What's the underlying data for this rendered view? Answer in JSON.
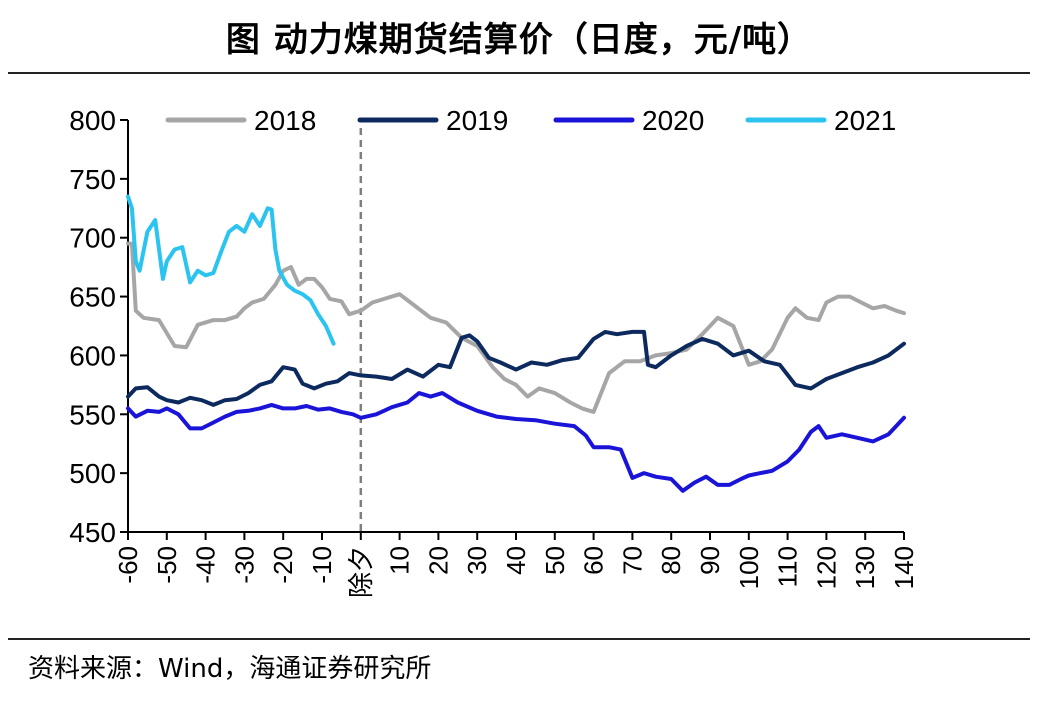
{
  "title": "图  动力煤期货结算价（日度，元/吨）",
  "source": "资料来源：Wind，海通证券研究所",
  "chart_data": {
    "type": "line",
    "title": "图  动力煤期货结算价（日度，元/吨）",
    "xlabel": "",
    "ylabel": "",
    "xlim": [
      -60,
      140
    ],
    "ylim": [
      450,
      800
    ],
    "yticks": [
      450,
      500,
      550,
      600,
      650,
      700,
      750,
      800
    ],
    "xticks": [
      -60,
      -50,
      -40,
      -30,
      -20,
      -10,
      0,
      10,
      20,
      30,
      40,
      50,
      60,
      70,
      80,
      90,
      100,
      110,
      120,
      130,
      140
    ],
    "xtick_labels": [
      "-60",
      "-50",
      "-40",
      "-30",
      "-20",
      "-10",
      "除夕",
      "10",
      "20",
      "30",
      "40",
      "50",
      "60",
      "70",
      "80",
      "90",
      "100",
      "110",
      "120",
      "130",
      "140"
    ],
    "reference_line": {
      "x": 0,
      "style": "dashed",
      "label": "除夕"
    },
    "grid": false,
    "legend_position": "top",
    "series": [
      {
        "name": "2018",
        "color": "#a6a6a6",
        "x": [
          -60,
          -59,
          -58,
          -56,
          -52,
          -48,
          -45,
          -42,
          -38,
          -35,
          -32,
          -30,
          -28,
          -25,
          -22,
          -20,
          -18,
          -16,
          -14,
          -12,
          -10,
          -8,
          -5,
          -3,
          0,
          3,
          6,
          10,
          14,
          18,
          22,
          26,
          30,
          34,
          37,
          40,
          43,
          46,
          50,
          54,
          57,
          60,
          64,
          68,
          72,
          76,
          80,
          84,
          88,
          92,
          96,
          100,
          103,
          106,
          110,
          112,
          115,
          118,
          120,
          123,
          126,
          129,
          132,
          135,
          138,
          140
        ],
        "values": [
          695,
          695,
          638,
          632,
          630,
          608,
          607,
          626,
          630,
          630,
          633,
          640,
          645,
          648,
          660,
          672,
          675,
          660,
          665,
          665,
          658,
          648,
          646,
          635,
          638,
          645,
          648,
          652,
          642,
          632,
          628,
          615,
          608,
          590,
          580,
          575,
          565,
          572,
          568,
          560,
          555,
          552,
          585,
          595,
          595,
          600,
          602,
          605,
          618,
          632,
          625,
          592,
          595,
          605,
          632,
          640,
          632,
          630,
          645,
          650,
          650,
          645,
          640,
          642,
          638,
          636
        ]
      },
      {
        "name": "2019",
        "color": "#0d2a5e",
        "x": [
          -60,
          -58,
          -55,
          -52,
          -50,
          -47,
          -44,
          -41,
          -38,
          -35,
          -32,
          -29,
          -26,
          -23,
          -20,
          -17,
          -15,
          -12,
          -9,
          -6,
          -3,
          0,
          4,
          8,
          12,
          16,
          20,
          23,
          26,
          28,
          30,
          33,
          36,
          40,
          44,
          48,
          52,
          56,
          60,
          63,
          66,
          70,
          73,
          74,
          76,
          80,
          84,
          88,
          92,
          96,
          100,
          104,
          108,
          112,
          116,
          120,
          124,
          128,
          132,
          136,
          140
        ],
        "values": [
          565,
          572,
          573,
          565,
          562,
          560,
          564,
          562,
          558,
          562,
          563,
          568,
          575,
          578,
          590,
          588,
          576,
          572,
          576,
          578,
          585,
          583,
          582,
          580,
          588,
          582,
          592,
          590,
          615,
          617,
          612,
          598,
          594,
          588,
          594,
          592,
          596,
          598,
          614,
          620,
          618,
          620,
          620,
          592,
          590,
          600,
          608,
          614,
          610,
          600,
          604,
          595,
          592,
          575,
          572,
          580,
          585,
          590,
          594,
          600,
          610
        ]
      },
      {
        "name": "2020",
        "color": "#1a14d9",
        "x": [
          -60,
          -58,
          -55,
          -52,
          -50,
          -47,
          -44,
          -41,
          -38,
          -35,
          -32,
          -29,
          -26,
          -23,
          -20,
          -17,
          -14,
          -11,
          -8,
          -5,
          -2,
          0,
          4,
          8,
          12,
          15,
          18,
          21,
          25,
          30,
          35,
          40,
          45,
          50,
          55,
          58,
          60,
          64,
          67,
          70,
          73,
          76,
          80,
          83,
          86,
          89,
          92,
          95,
          98,
          100,
          103,
          106,
          110,
          113,
          116,
          118,
          120,
          124,
          128,
          132,
          136,
          140
        ],
        "values": [
          555,
          548,
          553,
          552,
          555,
          550,
          538,
          538,
          543,
          548,
          552,
          553,
          555,
          558,
          555,
          555,
          557,
          554,
          555,
          552,
          550,
          547,
          550,
          556,
          560,
          568,
          565,
          568,
          560,
          553,
          548,
          546,
          545,
          542,
          540,
          532,
          522,
          522,
          520,
          496,
          500,
          497,
          495,
          485,
          492,
          497,
          490,
          490,
          495,
          498,
          500,
          502,
          510,
          520,
          535,
          540,
          530,
          533,
          530,
          527,
          533,
          547
        ]
      },
      {
        "name": "2021",
        "color": "#2bc3ef",
        "x": [
          -60,
          -59,
          -58,
          -57,
          -55,
          -53,
          -51,
          -50,
          -48,
          -46,
          -44,
          -42,
          -40,
          -38,
          -36,
          -34,
          -32,
          -30,
          -28,
          -26,
          -24,
          -23,
          -22,
          -21,
          -19,
          -17,
          -15,
          -13,
          -11,
          -9,
          -7
        ],
        "values": [
          735,
          725,
          680,
          672,
          705,
          715,
          665,
          680,
          690,
          692,
          662,
          672,
          668,
          670,
          688,
          705,
          710,
          705,
          720,
          710,
          725,
          724,
          690,
          672,
          660,
          655,
          652,
          647,
          635,
          625,
          610
        ]
      }
    ]
  }
}
